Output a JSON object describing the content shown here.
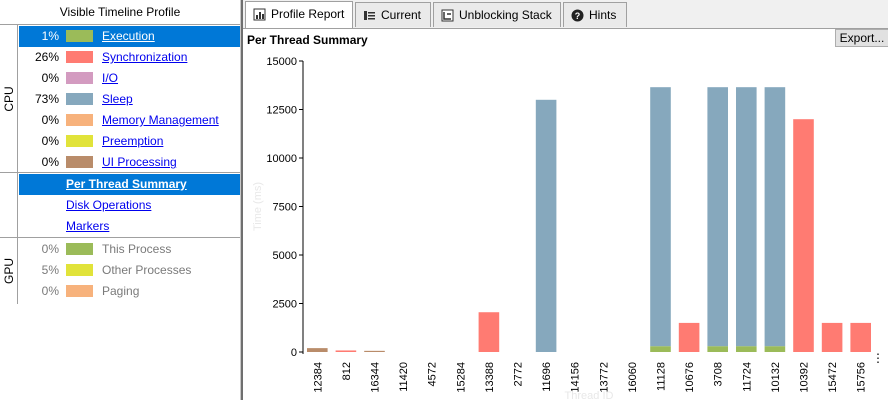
{
  "left_panel": {
    "title": "Visible Timeline Profile",
    "cpu_label": "CPU",
    "gpu_label": "GPU",
    "cpu_items": [
      {
        "pct": "1%",
        "label": "Execution",
        "color": "#9bbb59",
        "selected": true
      },
      {
        "pct": "26%",
        "label": "Synchronization",
        "color": "#ff7b72"
      },
      {
        "pct": "0%",
        "label": "I/O",
        "color": "#d39bc0"
      },
      {
        "pct": "73%",
        "label": "Sleep",
        "color": "#86a8bd"
      },
      {
        "pct": "0%",
        "label": "Memory Management",
        "color": "#f7b27c"
      },
      {
        "pct": "0%",
        "label": "Preemption",
        "color": "#e1e33a"
      },
      {
        "pct": "0%",
        "label": "UI Processing",
        "color": "#b98c6a"
      }
    ],
    "report_items": [
      {
        "label": "Per Thread Summary",
        "selected": true
      },
      {
        "label": "Disk Operations"
      },
      {
        "label": "Markers"
      }
    ],
    "gpu_items": [
      {
        "pct": "0%",
        "label": "This Process",
        "color": "#9bbb59"
      },
      {
        "pct": "5%",
        "label": "Other Processes",
        "color": "#e1e33a"
      },
      {
        "pct": "0%",
        "label": "Paging",
        "color": "#f7b27c"
      }
    ]
  },
  "tabs": [
    {
      "label": "Profile Report",
      "icon": "report-icon",
      "active": true
    },
    {
      "label": "Current",
      "icon": "current-icon"
    },
    {
      "label": "Unblocking Stack",
      "icon": "unblocking-stack-icon"
    },
    {
      "label": "Hints",
      "icon": "help-icon"
    }
  ],
  "summary_title": "Per Thread Summary",
  "export_label": "Export...",
  "more_label": "⋮",
  "chart_data": {
    "type": "bar",
    "stacked": true,
    "xlabel": "Thread ID",
    "ylabel": "Time (ms)",
    "ylim": [
      0,
      15000
    ],
    "yticks": [
      0,
      2500,
      5000,
      7500,
      10000,
      12500,
      15000
    ],
    "categories": [
      "12384",
      "812",
      "16344",
      "11420",
      "4572",
      "15284",
      "13388",
      "2772",
      "11696",
      "14156",
      "13772",
      "16060",
      "11128",
      "10676",
      "3708",
      "11724",
      "10132",
      "10392",
      "15472",
      "15756"
    ],
    "series": [
      {
        "color": "#9bbb59",
        "values": [
          0,
          0,
          0,
          0,
          0,
          0,
          0,
          0,
          0,
          0,
          0,
          0,
          300,
          0,
          300,
          300,
          300,
          0,
          0,
          0
        ]
      },
      {
        "color": "#ff7b72",
        "values": [
          0,
          80,
          0,
          0,
          0,
          0,
          2050,
          0,
          0,
          0,
          0,
          0,
          0,
          1500,
          0,
          0,
          0,
          12000,
          1500,
          1500
        ]
      },
      {
        "color": "#86a8bd",
        "values": [
          0,
          0,
          0,
          0,
          0,
          0,
          0,
          0,
          13000,
          0,
          0,
          0,
          13350,
          0,
          13350,
          13350,
          13350,
          0,
          0,
          0
        ]
      },
      {
        "color": "#b98c6a",
        "values": [
          200,
          0,
          60,
          0,
          0,
          0,
          0,
          0,
          0,
          0,
          0,
          0,
          0,
          0,
          0,
          0,
          0,
          0,
          0,
          0
        ]
      }
    ]
  }
}
